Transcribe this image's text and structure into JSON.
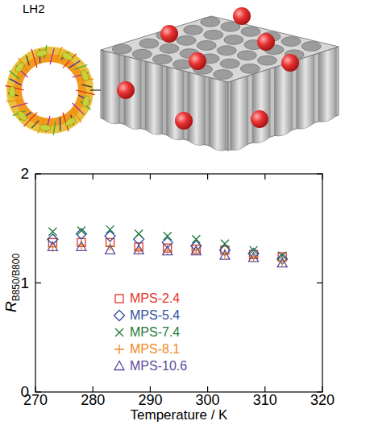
{
  "diagram": {
    "label": "LH2"
  },
  "chart_data": {
    "type": "scatter",
    "x_label": "Temperature / K",
    "y_label": "RB850/B800",
    "x": [
      273,
      278,
      283,
      288,
      293,
      298,
      303,
      308,
      313
    ],
    "series": [
      {
        "name": "MPS-2.4",
        "color": "#e2332c",
        "marker": "square",
        "values": [
          1.37,
          1.37,
          1.37,
          1.33,
          1.32,
          1.31,
          1.3,
          1.26,
          1.24
        ]
      },
      {
        "name": "MPS-5.4",
        "color": "#2f4f9e",
        "marker": "diamond",
        "values": [
          1.4,
          1.45,
          1.43,
          1.4,
          1.37,
          1.34,
          1.3,
          1.27,
          1.22
        ]
      },
      {
        "name": "MPS-7.4",
        "color": "#1d7a3a",
        "marker": "x",
        "values": [
          1.47,
          1.48,
          1.49,
          1.45,
          1.43,
          1.4,
          1.36,
          1.3,
          1.25
        ]
      },
      {
        "name": "MPS-8.1",
        "color": "#ef8a1f",
        "marker": "plus",
        "values": [
          1.33,
          1.35,
          1.34,
          1.31,
          1.3,
          1.3,
          1.27,
          1.24,
          1.2
        ]
      },
      {
        "name": "MPS-10.6",
        "color": "#5b4c9b",
        "marker": "triangle",
        "values": [
          1.33,
          1.33,
          1.3,
          1.3,
          1.29,
          1.29,
          1.25,
          1.23,
          1.18
        ]
      }
    ],
    "xlim": [
      270,
      320
    ],
    "xticks": [
      270,
      280,
      290,
      300,
      310,
      320
    ],
    "ylim": [
      0,
      2
    ],
    "yticks": [
      0,
      1,
      2
    ],
    "grid": false,
    "legend": "lower left"
  }
}
